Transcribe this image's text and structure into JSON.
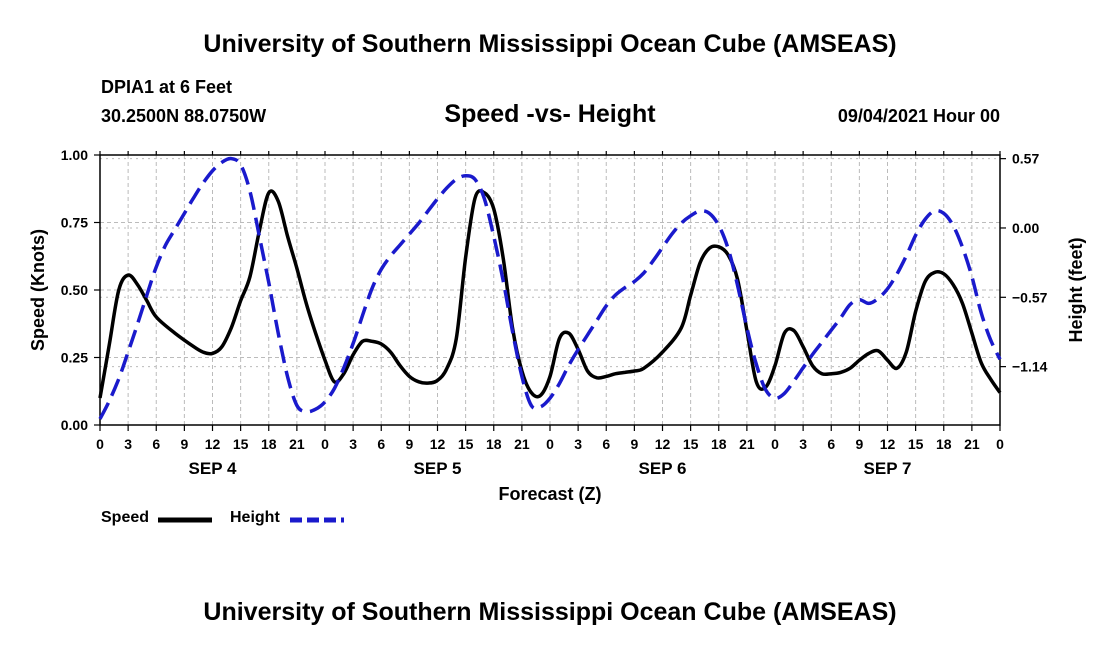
{
  "title": "University of Southern Mississippi Ocean Cube (AMSEAS)",
  "footer_title": "University of Southern Mississippi Ocean Cube (AMSEAS)",
  "station": "DPIA1 at 6 Feet",
  "coordinates": "30.2500N  88.0750W",
  "subtitle": "Speed -vs- Height",
  "datetime": "09/04/2021 Hour 00",
  "colors": {
    "speed": "#000000",
    "height": "#1a1acc",
    "grid": "#bbbbbb"
  },
  "chart_data": {
    "type": "line",
    "title": "Speed -vs- Height",
    "xlabel": "Forecast (Z)",
    "ylabel": "Speed (Knots)",
    "y2label": "Height (feet)",
    "xlim": [
      0,
      96
    ],
    "ylim": [
      0,
      1.0
    ],
    "y2lim": [
      -1.62,
      0.6
    ],
    "x_ticks": [
      0,
      3,
      6,
      9,
      12,
      15,
      18,
      21,
      24,
      27,
      30,
      33,
      36,
      39,
      42,
      45,
      48,
      51,
      54,
      57,
      60,
      63,
      66,
      69,
      72,
      75,
      78,
      81,
      84,
      87,
      90,
      93,
      96
    ],
    "x_tick_labels": [
      "0",
      "3",
      "6",
      "9",
      "12",
      "15",
      "18",
      "21",
      "0",
      "3",
      "6",
      "9",
      "12",
      "15",
      "18",
      "21",
      "0",
      "3",
      "6",
      "9",
      "12",
      "15",
      "18",
      "21",
      "0",
      "3",
      "6",
      "9",
      "12",
      "15",
      "18",
      "21",
      "0"
    ],
    "y_ticks": [
      0,
      0.25,
      0.5,
      0.75,
      1.0
    ],
    "y_tick_labels": [
      "0.00",
      "0.25",
      "0.50",
      "0.75",
      "1.00"
    ],
    "y2_ticks": [
      -1.14,
      -0.57,
      0.0,
      0.57
    ],
    "y2_tick_labels": [
      "−1.14",
      "−0.57",
      "0.00",
      "0.57"
    ],
    "day_labels": [
      {
        "x": 12,
        "label": "SEP 4"
      },
      {
        "x": 36,
        "label": "SEP 5"
      },
      {
        "x": 60,
        "label": "SEP 6"
      },
      {
        "x": 84,
        "label": "SEP 7"
      }
    ],
    "grid": true,
    "legend_position": "bottom-left",
    "series": [
      {
        "name": "Speed",
        "axis": "left",
        "style": "solid",
        "x": [
          0,
          1,
          2,
          3,
          4,
          5,
          6,
          8,
          10,
          11,
          12,
          13,
          14,
          15,
          16,
          17,
          18,
          19,
          20,
          21,
          22,
          23,
          24,
          25,
          26,
          27,
          28,
          29,
          30,
          31,
          32,
          33,
          34,
          35,
          36,
          37,
          38,
          39,
          40,
          41,
          42,
          43,
          44,
          45,
          46,
          47,
          48,
          49,
          50,
          51,
          52,
          53,
          54,
          55,
          56,
          57,
          58,
          60,
          62,
          63,
          64,
          65,
          66,
          67,
          68,
          69,
          70,
          71,
          72,
          73,
          74,
          75,
          76,
          77,
          78,
          79,
          80,
          81,
          82,
          83,
          84,
          85,
          86,
          87,
          88,
          89,
          90,
          91,
          92,
          93,
          94,
          95,
          96
        ],
        "y": [
          0.1,
          0.3,
          0.5,
          0.555,
          0.52,
          0.46,
          0.4,
          0.34,
          0.29,
          0.27,
          0.265,
          0.29,
          0.36,
          0.46,
          0.55,
          0.72,
          0.86,
          0.83,
          0.7,
          0.58,
          0.45,
          0.34,
          0.24,
          0.16,
          0.19,
          0.26,
          0.31,
          0.31,
          0.3,
          0.27,
          0.22,
          0.18,
          0.16,
          0.155,
          0.165,
          0.21,
          0.32,
          0.62,
          0.84,
          0.86,
          0.8,
          0.62,
          0.36,
          0.2,
          0.12,
          0.11,
          0.18,
          0.32,
          0.34,
          0.28,
          0.2,
          0.175,
          0.18,
          0.19,
          0.195,
          0.2,
          0.21,
          0.27,
          0.36,
          0.48,
          0.6,
          0.655,
          0.66,
          0.63,
          0.54,
          0.35,
          0.16,
          0.14,
          0.22,
          0.34,
          0.35,
          0.29,
          0.22,
          0.19,
          0.19,
          0.195,
          0.21,
          0.24,
          0.265,
          0.275,
          0.24,
          0.21,
          0.27,
          0.42,
          0.53,
          0.565,
          0.56,
          0.52,
          0.45,
          0.34,
          0.23,
          0.17,
          0.12
        ]
      },
      {
        "name": "Height",
        "axis": "right",
        "style": "dashed",
        "x": [
          0,
          1,
          2,
          3,
          4,
          5,
          6,
          7,
          8,
          9,
          10,
          11,
          12,
          13,
          14,
          15,
          16,
          17,
          18,
          19,
          20,
          21,
          22,
          23,
          24,
          25,
          26,
          27,
          28,
          29,
          30,
          31,
          32,
          33,
          34,
          35,
          36,
          37,
          38,
          39,
          40,
          41,
          42,
          43,
          44,
          45,
          46,
          47,
          48,
          49,
          50,
          51,
          52,
          53,
          54,
          55,
          56,
          57,
          58,
          59,
          60,
          61,
          62,
          63,
          64,
          65,
          66,
          67,
          68,
          69,
          70,
          71,
          72,
          73,
          74,
          75,
          76,
          77,
          78,
          79,
          80,
          81,
          82,
          83,
          84,
          85,
          86,
          87,
          88,
          89,
          90,
          91,
          92,
          93,
          94,
          95,
          96
        ],
        "y": [
          -1.57,
          -1.42,
          -1.24,
          -1.02,
          -0.79,
          -0.55,
          -0.32,
          -0.14,
          -0.01,
          0.12,
          0.25,
          0.37,
          0.47,
          0.54,
          0.57,
          0.52,
          0.3,
          -0.07,
          -0.45,
          -0.86,
          -1.22,
          -1.46,
          -1.51,
          -1.49,
          -1.43,
          -1.32,
          -1.15,
          -0.95,
          -0.72,
          -0.5,
          -0.34,
          -0.23,
          -0.14,
          -0.05,
          0.04,
          0.14,
          0.24,
          0.33,
          0.4,
          0.43,
          0.4,
          0.24,
          -0.07,
          -0.43,
          -0.85,
          -1.22,
          -1.46,
          -1.47,
          -1.4,
          -1.28,
          -1.13,
          -1.0,
          -0.88,
          -0.76,
          -0.64,
          -0.55,
          -0.49,
          -0.44,
          -0.37,
          -0.27,
          -0.16,
          -0.05,
          0.04,
          0.1,
          0.14,
          0.12,
          0.02,
          -0.17,
          -0.47,
          -0.82,
          -1.12,
          -1.33,
          -1.4,
          -1.36,
          -1.26,
          -1.15,
          -1.04,
          -0.94,
          -0.84,
          -0.74,
          -0.63,
          -0.59,
          -0.62,
          -0.58,
          -0.5,
          -0.38,
          -0.23,
          -0.06,
          0.07,
          0.14,
          0.12,
          0.02,
          -0.16,
          -0.4,
          -0.7,
          -0.92,
          -1.08
        ]
      }
    ]
  }
}
